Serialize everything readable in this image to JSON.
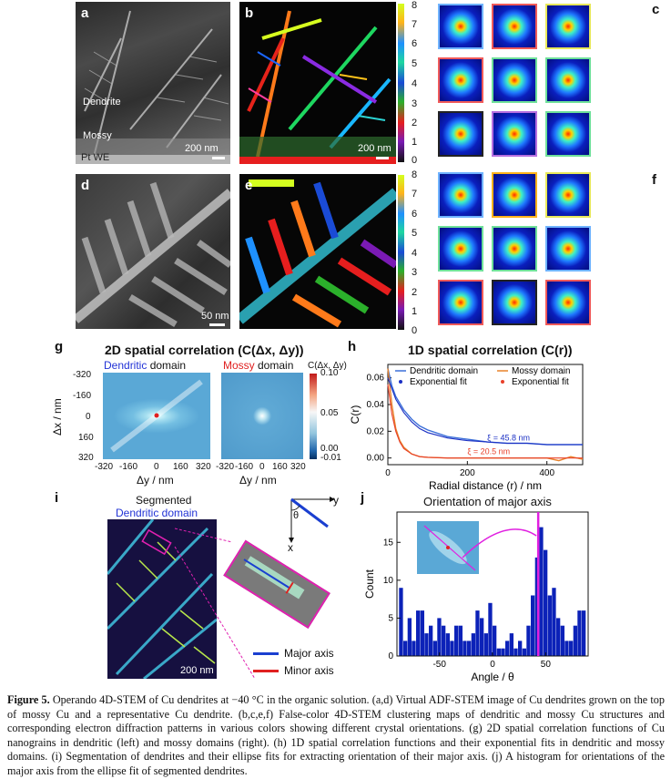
{
  "panels": {
    "a": {
      "letter": "a",
      "label_dendrite": "Dendrite",
      "label_mossy": "Mossy",
      "label_pt": "Pt WE",
      "scale": "200 nm"
    },
    "b": {
      "letter": "b",
      "scale": "200 nm",
      "colorbar_ticks": [
        "8",
        "7",
        "6",
        "5",
        "4",
        "3",
        "2",
        "1",
        "0"
      ]
    },
    "c": {
      "letter": "c"
    },
    "d": {
      "letter": "d",
      "scale": "50 nm"
    },
    "e": {
      "letter": "e",
      "colorbar_ticks": [
        "8",
        "7",
        "6",
        "5",
        "4",
        "3",
        "2",
        "1",
        "0"
      ]
    },
    "f": {
      "letter": "f"
    },
    "g": {
      "letter": "g",
      "title": "2D spatial correlation (C(Δx, Δy))",
      "left_title_colored": "Dendritic",
      "left_title_rest": " domain",
      "right_title_colored": "Mossy",
      "right_title_rest": " domain",
      "ylabel": "Δx / nm",
      "xlabel": "Δy / nm",
      "yticks": [
        "-320",
        "-160",
        "0",
        "160",
        "320"
      ],
      "xticks": [
        "-320",
        "-160",
        "0",
        "160",
        "320"
      ],
      "cbar_label": "C(Δx, Δy)",
      "cbar_ticks": [
        "0.10",
        "0.05",
        "0.00",
        "-0.01"
      ]
    },
    "h": {
      "letter": "h"
    },
    "i": {
      "letter": "i",
      "title_line1": "Segmented",
      "title_line2": "Dendritic domain",
      "scale": "200 nm",
      "axis_y": "y",
      "axis_x": "x",
      "axis_theta": "θ",
      "legend_major": "Major axis",
      "legend_minor": "Minor axis"
    },
    "j": {
      "letter": "j"
    }
  },
  "chart_data": [
    {
      "type": "line",
      "panel": "h",
      "title": "1D spatial correlation (C(r))",
      "xlabel": "Radial distance (r) / nm",
      "ylabel": "C(r)",
      "xlim": [
        0,
        490
      ],
      "ylim": [
        -0.005,
        0.07
      ],
      "xticks": [
        "0",
        "200",
        "400"
      ],
      "yticks": [
        "0.00",
        "0.02",
        "0.04",
        "0.06"
      ],
      "legend": [
        "Dendritic domain",
        "Mossy domain",
        "Exponential fit",
        "Exponential fit"
      ],
      "annotations": [
        "ξ = 45.8 nm",
        "ξ = 20.5 nm"
      ],
      "series": [
        {
          "name": "Dendritic domain",
          "color": "#3b6fd8",
          "x": [
            0,
            10,
            20,
            40,
            60,
            80,
            100,
            150,
            200,
            250,
            300,
            350,
            400,
            450,
            490
          ],
          "y": [
            0.067,
            0.054,
            0.046,
            0.036,
            0.029,
            0.024,
            0.021,
            0.016,
            0.014,
            0.012,
            0.011,
            0.011,
            0.01,
            0.01,
            0.01
          ]
        },
        {
          "name": "Mossy domain",
          "color": "#e8822a",
          "x": [
            0,
            10,
            20,
            30,
            40,
            60,
            80,
            100,
            150,
            200,
            300,
            400,
            430,
            460,
            490
          ],
          "y": [
            0.067,
            0.04,
            0.022,
            0.013,
            0.008,
            0.003,
            0.001,
            0.0005,
            0.0,
            0.0,
            0.0,
            0.0,
            -0.002,
            0.001,
            -0.001
          ]
        },
        {
          "name": "Exponential fit",
          "color": "#1a2fc4",
          "x": [
            0,
            20,
            40,
            60,
            80,
            100,
            150,
            200,
            250,
            300,
            350,
            400,
            450,
            490
          ],
          "y": [
            0.06,
            0.044,
            0.034,
            0.027,
            0.022,
            0.019,
            0.015,
            0.013,
            0.012,
            0.011,
            0.011,
            0.01,
            0.01,
            0.01
          ]
        },
        {
          "name": "Exponential fit",
          "color": "#e8402a",
          "x": [
            0,
            10,
            20,
            30,
            40,
            60,
            80,
            100,
            150,
            200,
            300,
            400,
            490
          ],
          "y": [
            0.055,
            0.033,
            0.02,
            0.012,
            0.007,
            0.003,
            0.001,
            0.0005,
            0.0,
            0.0,
            0.0,
            0.0,
            0.0
          ]
        }
      ]
    },
    {
      "type": "bar",
      "panel": "j",
      "title": "Orientation of major axis",
      "xlabel": "Angle / θ",
      "ylabel": "Count",
      "xlim": [
        -90,
        90
      ],
      "ylim": [
        0,
        19
      ],
      "xticks": [
        "-50",
        "0",
        "50"
      ],
      "yticks": [
        "0",
        "5",
        "10",
        "15"
      ],
      "marker_line_angle": 43,
      "bar_color": "#0c22b8",
      "x": [
        -86,
        -82,
        -78,
        -74,
        -70,
        -66,
        -62,
        -58,
        -54,
        -50,
        -46,
        -42,
        -38,
        -34,
        -30,
        -26,
        -22,
        -18,
        -14,
        -10,
        -6,
        -2,
        2,
        6,
        10,
        14,
        18,
        22,
        26,
        30,
        34,
        38,
        42,
        46,
        50,
        54,
        58,
        62,
        66,
        70,
        74,
        78,
        82,
        86
      ],
      "values": [
        9,
        2,
        5,
        2,
        6,
        6,
        3,
        4,
        2,
        5,
        4,
        3,
        2,
        4,
        4,
        2,
        2,
        3,
        6,
        5,
        3,
        7,
        4,
        1,
        1,
        2,
        3,
        1,
        2,
        1,
        4,
        8,
        13,
        17,
        14,
        8,
        9,
        5,
        4,
        2,
        2,
        4,
        6,
        6
      ]
    }
  ],
  "caption": {
    "fig": "Figure 5.",
    "text": " Operando 4D-STEM of Cu dendrites at −40 °C in the organic solution. (a,d) Virtual ADF-STEM image of Cu dendrites grown on the top of mossy Cu and a representative Cu dendrite. (b,c,e,f) False-color 4D-STEM clustering maps of dendritic and mossy Cu structures and corresponding electron diffraction patterns in various colors showing different crystal orientations. (g) 2D spatial correlation functions of Cu nanograins in dendritic (left) and mossy domains (right). (h) 1D spatial correlation functions and their exponential fits in dendritic and mossy domains. (i) Segmentation of dendrites and their ellipse fits for extracting orientation of their major axis. (j) A histogram for orientations of the major axis from the ellipse fit of segmented dendrites."
  },
  "colors": {
    "dendritic": "#2233d6",
    "mossy": "#e02020",
    "magenta": "#e020b0"
  }
}
